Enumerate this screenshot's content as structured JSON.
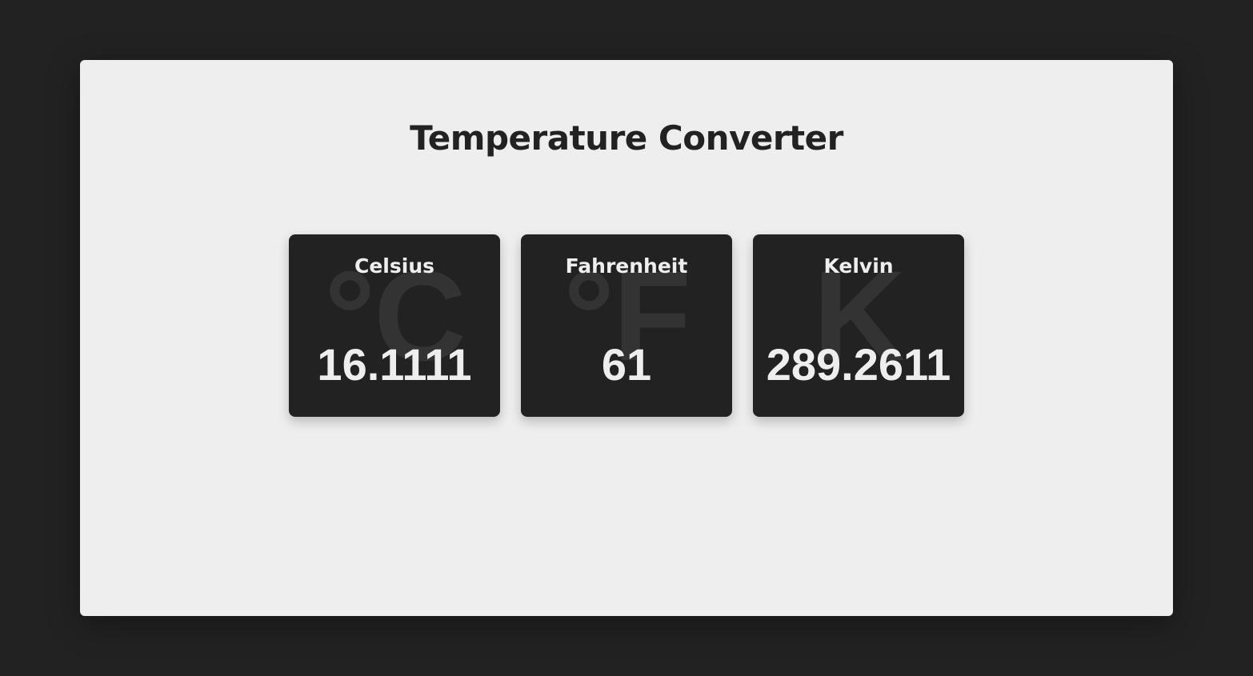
{
  "app": {
    "title": "Temperature Converter"
  },
  "cards": [
    {
      "label": "Celsius",
      "symbol": "°C",
      "value": "16.1111"
    },
    {
      "label": "Fahrenheit",
      "symbol": "°F",
      "value": "61"
    },
    {
      "label": "Kelvin",
      "symbol": "K",
      "value": "289.2611"
    }
  ],
  "colors": {
    "background": "#222222",
    "panel": "#eeeeee",
    "card": "#222222",
    "text_light": "#eeeeee",
    "watermark": "#333333"
  }
}
